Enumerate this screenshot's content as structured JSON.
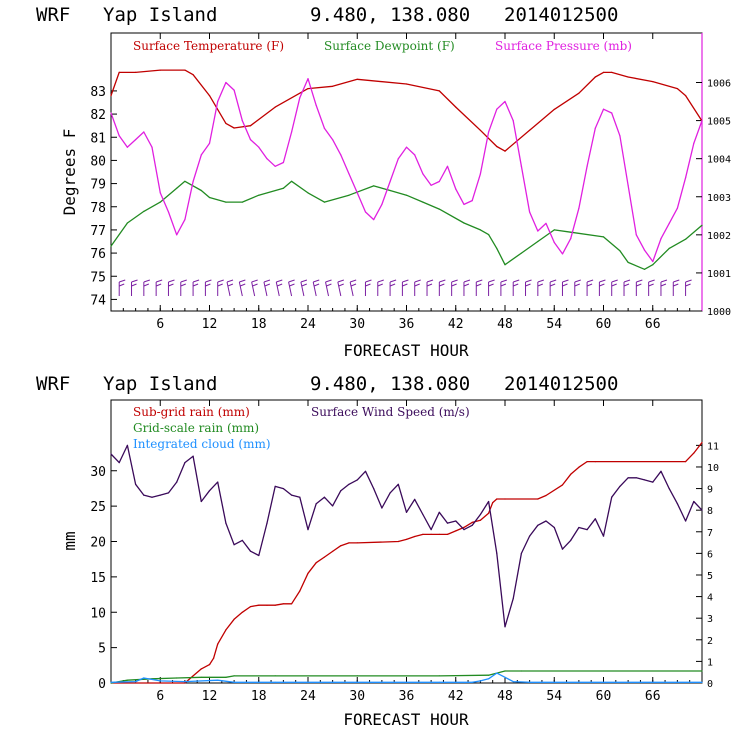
{
  "chart_data": [
    {
      "type": "line",
      "header": {
        "model": "WRF",
        "location": "Yap Island",
        "coords": "9.480, 138.080",
        "date": "2014012500"
      },
      "xlabel": "FORECAST HOUR",
      "ylabel": "Degrees F",
      "x_ticks": [
        "6",
        "12",
        "18",
        "24",
        "30",
        "36",
        "42",
        "48",
        "54",
        "60",
        "66"
      ],
      "xlim": [
        0,
        72
      ],
      "left_ylim": [
        73.5,
        85.5
      ],
      "left_ticks": [
        "74",
        "75",
        "76",
        "77",
        "78",
        "79",
        "80",
        "81",
        "82",
        "83"
      ],
      "right_ylim": [
        1000,
        1007.3
      ],
      "right_ticks": [
        "1000",
        "1001",
        "1002",
        "1003",
        "1004",
        "1005",
        "1006"
      ],
      "colors": {
        "temperature": "#c00000",
        "dewpoint": "#228b22",
        "pressure": "#e020e0",
        "wind_barb": "#7b1fa2"
      },
      "series": [
        {
          "name": "Surface Temperature (F)",
          "axis": "left",
          "x": [
            0,
            1,
            3,
            6,
            9,
            10,
            12,
            14,
            15,
            17,
            20,
            24,
            27,
            30,
            36,
            40,
            42,
            45,
            47,
            48,
            51,
            54,
            57,
            59,
            60,
            61,
            63,
            66,
            69,
            70,
            72
          ],
          "values": [
            82.8,
            83.8,
            83.8,
            83.9,
            83.9,
            83.7,
            82.8,
            81.6,
            81.4,
            81.5,
            82.3,
            83.1,
            83.2,
            83.5,
            83.3,
            83.0,
            82.3,
            81.3,
            80.6,
            80.4,
            81.3,
            82.2,
            82.9,
            83.6,
            83.8,
            83.8,
            83.6,
            83.4,
            83.1,
            82.8,
            81.7
          ]
        },
        {
          "name": "Surface Dewpoint (F)",
          "axis": "left",
          "x": [
            0,
            2,
            4,
            6,
            8,
            9,
            11,
            12,
            14,
            16,
            18,
            21,
            22,
            24,
            26,
            29,
            32,
            34,
            36,
            38,
            40,
            43,
            45,
            46,
            47,
            48,
            50,
            52,
            54,
            56,
            60,
            62,
            63,
            65,
            66,
            68,
            70,
            72
          ],
          "values": [
            76.3,
            77.3,
            77.8,
            78.2,
            78.8,
            79.1,
            78.7,
            78.4,
            78.2,
            78.2,
            78.5,
            78.8,
            79.1,
            78.6,
            78.2,
            78.5,
            78.9,
            78.7,
            78.5,
            78.2,
            77.9,
            77.3,
            77.0,
            76.8,
            76.2,
            75.5,
            76.0,
            76.5,
            77.0,
            76.9,
            76.7,
            76.1,
            75.6,
            75.3,
            75.5,
            76.2,
            76.6,
            77.2
          ]
        },
        {
          "name": "Surface Pressure (mb)",
          "axis": "right",
          "x": [
            0,
            1,
            2,
            3,
            4,
            5,
            6,
            7,
            8,
            9,
            10,
            11,
            12,
            13,
            14,
            15,
            16,
            17,
            18,
            19,
            20,
            21,
            22,
            23,
            24,
            25,
            26,
            27,
            28,
            29,
            30,
            31,
            32,
            33,
            34,
            35,
            36,
            37,
            38,
            39,
            40,
            41,
            42,
            43,
            44,
            45,
            46,
            47,
            48,
            49,
            50,
            51,
            52,
            53,
            54,
            55,
            56,
            57,
            58,
            59,
            60,
            61,
            62,
            63,
            64,
            65,
            66,
            67,
            68,
            69,
            70,
            71,
            72
          ],
          "values": [
            1005.2,
            1004.6,
            1004.3,
            1004.5,
            1004.7,
            1004.3,
            1003.1,
            1002.6,
            1002.0,
            1002.4,
            1003.4,
            1004.1,
            1004.4,
            1005.5,
            1006.0,
            1005.8,
            1005.0,
            1004.5,
            1004.3,
            1004.0,
            1003.8,
            1003.9,
            1004.7,
            1005.6,
            1006.1,
            1005.4,
            1004.8,
            1004.5,
            1004.1,
            1003.6,
            1003.1,
            1002.6,
            1002.4,
            1002.8,
            1003.4,
            1004.0,
            1004.3,
            1004.1,
            1003.6,
            1003.3,
            1003.4,
            1003.8,
            1003.2,
            1002.8,
            1002.9,
            1003.6,
            1004.7,
            1005.3,
            1005.5,
            1005.0,
            1003.8,
            1002.6,
            1002.1,
            1002.3,
            1001.8,
            1001.5,
            1001.9,
            1002.7,
            1003.8,
            1004.8,
            1005.3,
            1005.2,
            1004.6,
            1003.3,
            1002.0,
            1001.6,
            1001.3,
            1001.9,
            1002.3,
            1002.7,
            1003.5,
            1004.4,
            1005.0
          ]
        }
      ],
      "wind_barbs": {
        "interval_hours": 1.5,
        "count": 47
      }
    },
    {
      "type": "line",
      "header": {
        "model": "WRF",
        "location": "Yap Island",
        "coords": "9.480, 138.080",
        "date": "2014012500"
      },
      "xlabel": "FORECAST HOUR",
      "ylabel": "mm",
      "x_ticks": [
        "6",
        "12",
        "18",
        "24",
        "30",
        "36",
        "42",
        "48",
        "54",
        "60",
        "66"
      ],
      "xlim": [
        0,
        72
      ],
      "left_ylim": [
        0,
        40
      ],
      "left_ticks": [
        "0",
        "5",
        "10",
        "15",
        "20",
        "25",
        "30"
      ],
      "right_ylim": [
        0,
        13.1
      ],
      "right_ticks": [
        "0",
        "1",
        "2",
        "3",
        "4",
        "5",
        "6",
        "7",
        "8",
        "9",
        "10",
        "11"
      ],
      "colors": {
        "subgrid": "#c00000",
        "gridscale": "#228b22",
        "cloud": "#1e90ff",
        "wind": "#3a0a5a"
      },
      "series": [
        {
          "name": "Sub-grid rain (mm)",
          "axis": "left",
          "x": [
            0,
            9,
            10,
            11,
            12,
            12.5,
            13,
            14,
            15,
            16,
            17,
            18,
            19,
            20,
            21,
            22,
            23,
            24,
            25,
            26,
            27,
            28,
            29,
            30,
            35,
            36,
            37,
            38,
            39,
            40,
            41,
            42,
            43,
            44,
            45,
            46,
            46.5,
            47,
            48,
            52,
            53,
            55,
            56,
            57,
            58,
            59,
            70,
            71,
            72
          ],
          "values": [
            0,
            0,
            1.0,
            2.0,
            2.6,
            3.5,
            5.5,
            7.5,
            9.0,
            10.0,
            10.8,
            11.0,
            11.0,
            11.0,
            11.2,
            11.2,
            13.0,
            15.5,
            17.0,
            17.8,
            18.6,
            19.4,
            19.8,
            19.8,
            20.0,
            20.3,
            20.7,
            21.0,
            21.0,
            21.0,
            21.0,
            21.5,
            22.0,
            22.7,
            23.0,
            24.0,
            25.5,
            26.0,
            26.0,
            26.0,
            26.5,
            28.0,
            29.5,
            30.5,
            31.3,
            31.3,
            31.3,
            32.5,
            34.0
          ]
        },
        {
          "name": "Grid-scale rain (mm)",
          "axis": "left",
          "x": [
            0,
            2,
            5,
            8,
            11,
            12,
            14,
            15,
            20,
            30,
            40,
            46,
            47,
            48,
            50,
            72
          ],
          "values": [
            0,
            0.4,
            0.6,
            0.7,
            0.8,
            0.8,
            0.8,
            1.0,
            1.0,
            1.0,
            1.0,
            1.1,
            1.4,
            1.7,
            1.7,
            1.7
          ]
        },
        {
          "name": "Integrated cloud (mm)",
          "axis": "left",
          "x": [
            0,
            3,
            4,
            6,
            9,
            13,
            15,
            20,
            30,
            40,
            44,
            45,
            46,
            47,
            48,
            49,
            51,
            72
          ],
          "values": [
            0.1,
            0.2,
            0.7,
            0.3,
            0.2,
            0.4,
            0.1,
            0.1,
            0.1,
            0.1,
            0.1,
            0.3,
            0.6,
            1.4,
            0.8,
            0.2,
            0.1,
            0.1
          ]
        },
        {
          "name": "Surface Wind Speed (m/s)",
          "axis": "right",
          "x": [
            0,
            1,
            2,
            3,
            4,
            5,
            6,
            7,
            8,
            9,
            10,
            11,
            12,
            13,
            14,
            15,
            16,
            17,
            18,
            19,
            20,
            21,
            22,
            23,
            24,
            25,
            26,
            27,
            28,
            29,
            30,
            31,
            32,
            33,
            34,
            35,
            36,
            37,
            38,
            39,
            40,
            41,
            42,
            43,
            44,
            45,
            46,
            47,
            48,
            49,
            50,
            51,
            52,
            53,
            54,
            55,
            56,
            57,
            58,
            59,
            60,
            61,
            62,
            63,
            64,
            65,
            66,
            67,
            68,
            69,
            70,
            71,
            72
          ],
          "values": [
            10.6,
            10.2,
            11.0,
            9.2,
            8.7,
            8.6,
            8.7,
            8.8,
            9.3,
            10.2,
            10.5,
            8.4,
            8.9,
            9.3,
            7.4,
            6.4,
            6.6,
            6.1,
            5.9,
            7.4,
            9.1,
            9.0,
            8.7,
            8.6,
            7.1,
            8.3,
            8.6,
            8.2,
            8.9,
            9.2,
            9.4,
            9.8,
            9.0,
            8.1,
            8.8,
            9.2,
            7.9,
            8.5,
            7.8,
            7.1,
            7.9,
            7.4,
            7.5,
            7.1,
            7.3,
            7.8,
            8.4,
            6.0,
            2.6,
            3.9,
            6.0,
            6.8,
            7.3,
            7.5,
            7.2,
            6.2,
            6.6,
            7.2,
            7.1,
            7.6,
            6.8,
            8.6,
            9.1,
            9.5,
            9.5,
            9.4,
            9.3,
            9.8,
            9.0,
            8.3,
            7.5,
            8.4,
            8.0
          ]
        }
      ]
    }
  ]
}
